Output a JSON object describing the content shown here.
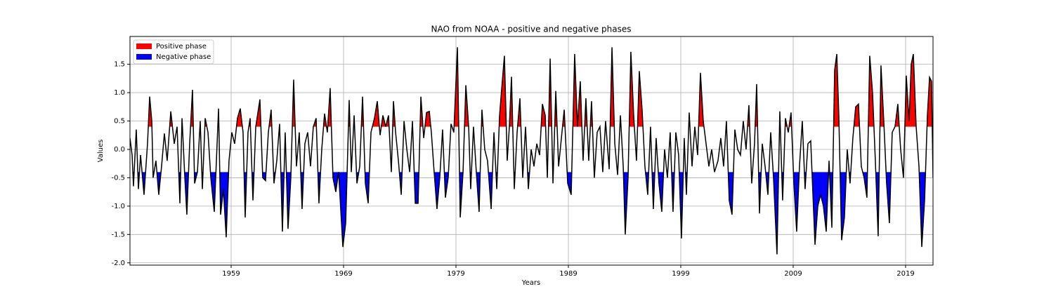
{
  "chart_data": {
    "type": "line",
    "title": "NAO from NOAA - positive and negative phases",
    "xlabel": "Years",
    "ylabel": "Values",
    "color": "black",
    "grid": true,
    "legend": "upper left",
    "xlim": [
      1950,
      2021.44
    ],
    "xticks": [
      1959,
      1969,
      1979,
      1989,
      1999,
      2009,
      2019
    ],
    "ylim": [
      -2.04,
      1.99
    ],
    "yticks": [
      {
        "value": -2.0,
        "label": "-2.0"
      },
      -1.5,
      {
        "value": -1.0,
        "label": "-1.0"
      },
      -0.5,
      {
        "value": 0.0,
        "label": "0.0"
      },
      0.5,
      {
        "value": 1.0,
        "label": "1.0"
      },
      1.5
    ],
    "fills": [
      {
        "name": "Positive phase",
        "color": "red",
        "threshold": 0.4,
        "side": "above"
      },
      {
        "name": "Negative phase",
        "color": "blue",
        "threshold": -0.4,
        "side": "below"
      }
    ],
    "x": [
      1950.0,
      1950.19,
      1950.31,
      1950.56,
      1950.75,
      1950.94,
      1951.25,
      1951.56,
      1951.75,
      1951.94,
      1952.06,
      1952.31,
      1952.56,
      1952.81,
      1953.06,
      1953.31,
      1953.63,
      1953.94,
      1954.19,
      1954.44,
      1954.63,
      1954.88,
      1955.06,
      1955.31,
      1955.56,
      1955.75,
      1956.0,
      1956.25,
      1956.44,
      1956.69,
      1956.94,
      1957.19,
      1957.5,
      1957.88,
      1958.06,
      1958.31,
      1958.56,
      1958.81,
      1959.06,
      1959.31,
      1959.56,
      1959.81,
      1960.06,
      1960.25,
      1960.5,
      1960.69,
      1960.94,
      1961.19,
      1961.56,
      1961.81,
      1962.06,
      1962.31,
      1962.56,
      1962.81,
      1963.06,
      1963.31,
      1963.56,
      1963.81,
      1964.06,
      1964.31,
      1964.56,
      1964.81,
      1965.06,
      1965.31,
      1965.56,
      1965.81,
      1966.06,
      1966.31,
      1966.56,
      1966.81,
      1967.06,
      1967.31,
      1967.56,
      1967.81,
      1968.06,
      1968.31,
      1968.56,
      1968.94,
      1969.19,
      1969.5,
      1969.69,
      1969.94,
      1970.19,
      1970.44,
      1970.69,
      1970.94,
      1971.19,
      1971.44,
      1971.75,
      1972.0,
      1972.25,
      1972.5,
      1972.75,
      1973.0,
      1973.25,
      1973.44,
      1973.63,
      1973.88,
      1974.13,
      1974.38,
      1974.63,
      1974.88,
      1975.13,
      1975.38,
      1975.63,
      1975.88,
      1976.13,
      1976.38,
      1976.63,
      1976.81,
      1977.06,
      1977.31,
      1977.56,
      1977.81,
      1978.06,
      1978.31,
      1978.56,
      1978.81,
      1979.13,
      1979.38,
      1979.63,
      1979.88,
      1980.13,
      1980.31,
      1980.56,
      1980.81,
      1981.06,
      1981.31,
      1981.56,
      1981.81,
      1982.13,
      1982.38,
      1982.63,
      1982.88,
      1983.06,
      1983.31,
      1983.56,
      1983.75,
      1983.94,
      1984.19,
      1984.44,
      1984.69,
      1984.94,
      1985.19,
      1985.44,
      1985.69,
      1985.94,
      1986.19,
      1986.44,
      1986.69,
      1986.94,
      1987.13,
      1987.38,
      1987.63,
      1987.88,
      1988.13,
      1988.38,
      1988.63,
      1988.94,
      1989.25,
      1989.56,
      1989.81,
      1990.06,
      1990.31,
      1990.56,
      1990.81,
      1991.06,
      1991.31,
      1991.56,
      1991.81,
      1992.06,
      1992.31,
      1992.63,
      1992.88,
      1993.13,
      1993.38,
      1993.63,
      1993.88,
      1994.06,
      1994.31,
      1994.56,
      1994.81,
      1995.06,
      1995.31,
      1995.56,
      1995.81,
      1996.06,
      1996.31,
      1996.56,
      1996.81,
      1997.06,
      1997.31,
      1997.56,
      1997.81,
      1998.06,
      1998.31,
      1998.56,
      1998.81,
      1999.06,
      1999.31,
      1999.5,
      1999.75,
      2000.0,
      2000.25,
      2000.5,
      2000.75,
      2001.0,
      2001.25,
      2001.5,
      2001.75,
      2002.0,
      2002.31,
      2002.56,
      2002.81,
      2003.06,
      2003.31,
      2003.56,
      2003.81,
      2004.06,
      2004.31,
      2004.56,
      2004.81,
      2005.06,
      2005.31,
      2005.56,
      2005.75,
      2006.0,
      2006.25,
      2006.5,
      2006.75,
      2007.0,
      2007.25,
      2007.56,
      2007.81,
      2008.06,
      2008.31,
      2008.56,
      2008.81,
      2009.06,
      2009.31,
      2009.56,
      2009.81,
      2010.06,
      2010.31,
      2010.56,
      2010.94,
      2011.19,
      2011.44,
      2011.69,
      2011.94,
      2012.19,
      2012.44,
      2012.69,
      2012.88,
      2013.06,
      2013.31,
      2013.56,
      2013.81,
      2014.06,
      2014.31,
      2014.56,
      2014.81,
      2015.06,
      2015.31,
      2015.56,
      2015.81,
      2016.06,
      2016.31,
      2016.56,
      2016.81,
      2017.06,
      2017.31,
      2017.56,
      2017.81,
      2018.06,
      2018.31,
      2018.56,
      2018.81,
      2019.06,
      2019.31,
      2019.5,
      2019.69,
      2019.94,
      2020.19,
      2020.44,
      2020.69,
      2020.94,
      2021.13,
      2021.31,
      2021.44
    ],
    "values": [
      0.2,
      -0.1,
      -0.65,
      0.35,
      -0.7,
      -0.1,
      -0.8,
      0.1,
      0.93,
      0.5,
      -0.5,
      -0.2,
      -0.8,
      -0.3,
      0.28,
      -0.2,
      0.67,
      0.1,
      0.4,
      -0.95,
      0.55,
      -0.5,
      -1.15,
      0.1,
      1.05,
      -0.6,
      -0.4,
      0.5,
      -0.7,
      0.55,
      0.3,
      -0.5,
      -1.1,
      0.72,
      -1.15,
      -0.7,
      -1.55,
      -0.2,
      0.3,
      0.1,
      0.55,
      0.72,
      0.3,
      -1.2,
      0.3,
      0.55,
      -0.9,
      0.4,
      0.88,
      -0.5,
      -0.55,
      0.3,
      0.7,
      -0.6,
      -0.2,
      0.45,
      -1.45,
      0.3,
      -1.4,
      -0.5,
      1.23,
      -0.3,
      0.3,
      -1.05,
      0.1,
      0.3,
      -0.3,
      0.4,
      0.55,
      -0.95,
      0.0,
      0.63,
      0.3,
      1.08,
      -0.5,
      -0.75,
      -0.4,
      -1.72,
      -1.3,
      0.87,
      -0.4,
      0.6,
      -0.6,
      -0.3,
      0.93,
      -0.6,
      -0.95,
      0.3,
      0.55,
      0.85,
      0.25,
      0.6,
      0.4,
      0.6,
      -0.4,
      0.85,
      0.3,
      -0.2,
      -0.8,
      0.5,
      0.0,
      -0.4,
      0.5,
      -0.95,
      -0.95,
      0.93,
      0.2,
      0.65,
      0.67,
      0.3,
      -0.4,
      -1.05,
      -0.5,
      0.35,
      -0.85,
      -0.5,
      0.45,
      0.3,
      1.8,
      -1.2,
      -0.4,
      1.13,
      0.4,
      -0.7,
      0.4,
      -0.4,
      -1.1,
      0.7,
      0.0,
      -0.2,
      -1.05,
      0.3,
      -0.7,
      0.6,
      1.05,
      1.65,
      -0.2,
      0.4,
      1.28,
      -0.7,
      0.3,
      0.9,
      -0.5,
      0.4,
      -0.7,
      0.0,
      -0.3,
      0.1,
      -0.1,
      0.8,
      0.6,
      -0.5,
      1.6,
      -0.6,
      1.03,
      -0.3,
      0.2,
      0.7,
      -0.6,
      -0.8,
      1.68,
      0.4,
      1.2,
      -0.2,
      0.9,
      -0.2,
      0.85,
      -0.5,
      0.3,
      0.4,
      -0.4,
      0.5,
      -0.35,
      1.8,
      0.1,
      -0.45,
      0.6,
      -0.3,
      -1.5,
      -0.5,
      1.72,
      0.6,
      -0.2,
      1.38,
      0.7,
      -0.3,
      -0.8,
      0.4,
      -1.05,
      0.2,
      -0.6,
      -1.1,
      0.0,
      -0.5,
      0.3,
      -1.1,
      0.3,
      -0.1,
      -1.57,
      0.2,
      -0.8,
      0.65,
      -0.3,
      0.4,
      -0.1,
      1.35,
      0.5,
      0.1,
      -0.3,
      0.0,
      -0.4,
      -0.2,
      0.2,
      -0.3,
      0.5,
      -0.9,
      -1.15,
      0.35,
      0.0,
      -0.1,
      0.5,
      0.0,
      0.78,
      -0.6,
      0.1,
      1.15,
      -1.13,
      0.1,
      -0.3,
      -0.8,
      0.3,
      -0.5,
      -1.85,
      0.67,
      -0.9,
      0.55,
      0.3,
      0.65,
      -0.6,
      -1.45,
      -0.3,
      0.5,
      -0.7,
      0.1,
      0.15,
      -1.68,
      -1.0,
      -0.8,
      -1.0,
      -1.45,
      -0.2,
      -1.38,
      1.4,
      1.68,
      0.6,
      -1.6,
      -1.2,
      0.0,
      -0.6,
      0.2,
      0.75,
      0.8,
      -0.3,
      -0.5,
      -0.85,
      1.65,
      1.0,
      -0.2,
      -1.53,
      1.48,
      0.5,
      -0.6,
      -1.3,
      0.3,
      0.4,
      0.8,
      0.0,
      -0.5,
      1.3,
      0.5,
      1.5,
      1.68,
      0.4,
      -0.3,
      -1.72,
      -0.9,
      0.6,
      1.27,
      1.2,
      -0.5
    ]
  }
}
